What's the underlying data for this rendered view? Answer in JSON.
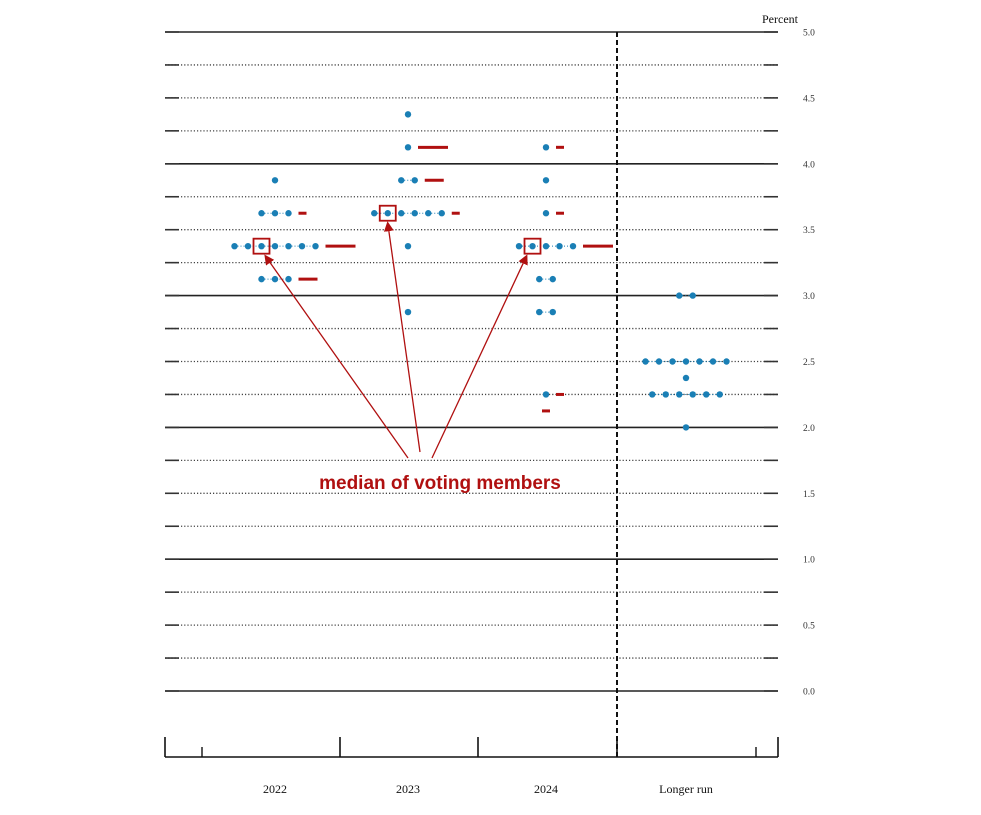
{
  "chart_data": {
    "type": "scatter",
    "title": "",
    "ylabel": "Percent",
    "ylim": [
      0,
      5
    ],
    "y_ticks": [
      "0.0",
      "0.5",
      "1.0",
      "1.5",
      "2.0",
      "2.5",
      "3.0",
      "3.5",
      "4.0",
      "4.5",
      "5.0"
    ],
    "categories": [
      "2022",
      "2023",
      "2024",
      "Longer run"
    ],
    "grid": true,
    "dots": [
      {
        "category": "2022",
        "y": 3.875,
        "count": 1
      },
      {
        "category": "2022",
        "y": 3.625,
        "count": 3
      },
      {
        "category": "2022",
        "y": 3.375,
        "count": 7
      },
      {
        "category": "2022",
        "y": 3.125,
        "count": 3
      },
      {
        "category": "2023",
        "y": 4.375,
        "count": 1
      },
      {
        "category": "2023",
        "y": 4.125,
        "count": 1
      },
      {
        "category": "2023",
        "y": 3.875,
        "count": 2
      },
      {
        "category": "2023",
        "y": 3.625,
        "count": 6
      },
      {
        "category": "2023",
        "y": 3.375,
        "count": 1
      },
      {
        "category": "2023",
        "y": 2.875,
        "count": 1
      },
      {
        "category": "2024",
        "y": 4.125,
        "count": 1
      },
      {
        "category": "2024",
        "y": 3.875,
        "count": 1
      },
      {
        "category": "2024",
        "y": 3.625,
        "count": 1
      },
      {
        "category": "2024",
        "y": 3.375,
        "count": 5
      },
      {
        "category": "2024",
        "y": 3.125,
        "count": 2
      },
      {
        "category": "2024",
        "y": 2.875,
        "count": 2
      },
      {
        "category": "2024",
        "y": 2.25,
        "count": 1
      },
      {
        "category": "Longer run",
        "y": 3.0,
        "count": 2
      },
      {
        "category": "Longer run",
        "y": 2.5,
        "count": 7
      },
      {
        "category": "Longer run",
        "y": 2.375,
        "count": 1
      },
      {
        "category": "Longer run",
        "y": 2.25,
        "count": 6
      },
      {
        "category": "Longer run",
        "y": 2.0,
        "count": 1
      }
    ],
    "voting_member_marks": [
      {
        "category": "2022",
        "y": 3.625,
        "count": 1
      },
      {
        "category": "2022",
        "y": 3.375,
        "count": 3
      },
      {
        "category": "2022",
        "y": 3.125,
        "count": 2
      },
      {
        "category": "2023",
        "y": 4.125,
        "count": 3
      },
      {
        "category": "2023",
        "y": 3.875,
        "count": 2
      },
      {
        "category": "2023",
        "y": 3.625,
        "count": 1
      },
      {
        "category": "2024",
        "y": 4.125,
        "count": 1
      },
      {
        "category": "2024",
        "y": 3.625,
        "count": 1
      },
      {
        "category": "2024",
        "y": 3.375,
        "count": 3
      },
      {
        "category": "2024",
        "y": 2.25,
        "count": 1
      },
      {
        "category": "2024",
        "y": 2.125,
        "count": 1
      }
    ],
    "medians": [
      {
        "category": "2022",
        "y": 3.375
      },
      {
        "category": "2023",
        "y": 3.625
      },
      {
        "category": "2024",
        "y": 3.375
      }
    ],
    "annotation": "median of voting members",
    "colors": {
      "dot": "#1a7fb5",
      "voting_mark": "#b01010",
      "annotation": "#b01010",
      "axis": "#111111"
    }
  }
}
